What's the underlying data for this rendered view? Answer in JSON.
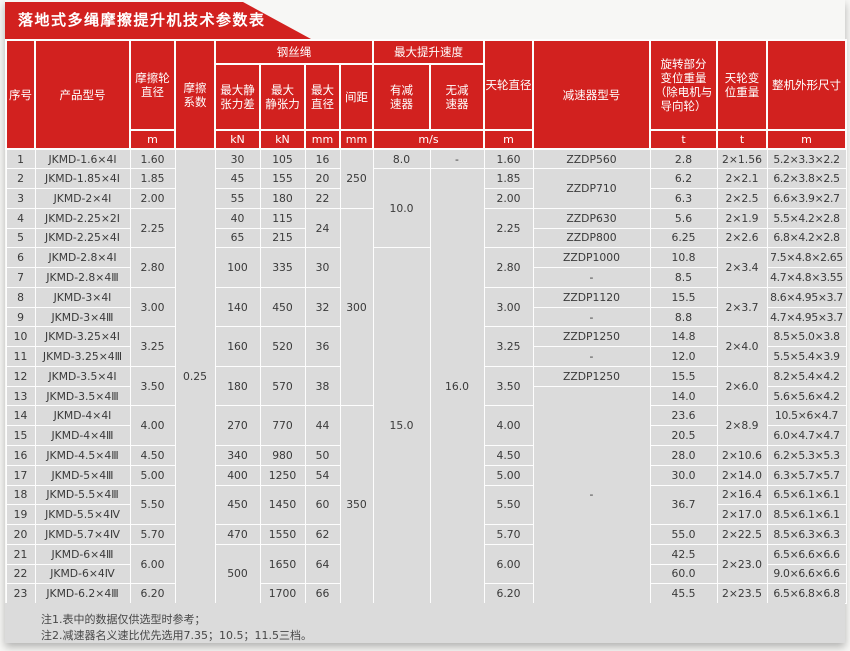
{
  "title": "落地式多绳摩擦提升机技术参数表",
  "colors": {
    "accent_red": "#d2211f",
    "row_bg": "#dbdbdb",
    "grid_line": "#fdfdfd",
    "text": "#3a3a3a"
  },
  "header": {
    "seq": "序号",
    "model": "产品型号",
    "wheel_d": "摩擦轮\n直径",
    "fric": "摩擦\n系数",
    "rope_group": "钢丝绳",
    "tension_diff": "最大静\n张力差",
    "tension_max": "最大\n静张力",
    "rope_dmax": "最大\n直径",
    "spacing": "间距",
    "speed_group": "最大提升速度",
    "speed_red": "有减\n速器",
    "speed_nored": "无减\n速器",
    "sheave_d": "天轮直径",
    "reducer": "减速器型号",
    "rotating_wt": "旋转部分\n变位重量\n（除电机与\n导向轮）",
    "sheave_wt": "天轮变\n位重量",
    "dims": "整机外形尺寸",
    "units": {
      "wheel_d": "m",
      "tension_diff": "kN",
      "tension_max": "kN",
      "rope_dmax": "mm",
      "spacing": "mm",
      "speed": "m/s",
      "sheave_d": "m",
      "rotating_wt": "t",
      "sheave_wt": "t",
      "dims": "m"
    }
  },
  "rows": [
    [
      "1",
      "JKMD-1.6×4Ⅰ",
      "1.60",
      {
        "v": "0.25",
        "rs": 23
      },
      "30",
      "105",
      "16",
      {
        "v": "250",
        "rs": 3
      },
      "8.0",
      "-",
      "1.60",
      "ZZDP560",
      "2.8",
      "2×1.56",
      "5.2×3.3×2.2"
    ],
    [
      "2",
      "JKMD-1.85×4Ⅰ",
      "1.85",
      "45",
      "155",
      "20",
      {
        "v": "10.0",
        "rs": 4
      },
      {
        "v": "16.0",
        "rs": 22
      },
      "1.85",
      {
        "v": "ZZDP710",
        "rs": 2
      },
      "6.2",
      "2×2.1",
      "6.2×3.8×2.5"
    ],
    [
      "3",
      "JKMD-2×4Ⅰ",
      "2.00",
      "55",
      "180",
      "22",
      "2.00",
      "6.3",
      "2×2.5",
      "6.6×3.9×2.7"
    ],
    [
      "4",
      "JKMD-2.25×2Ⅰ",
      {
        "v": "2.25",
        "rs": 2
      },
      "40",
      "115",
      {
        "v": "24",
        "rs": 2
      },
      {
        "v": "300",
        "rs": 10
      },
      {
        "v": "2.25",
        "rs": 2
      },
      "ZZDP630",
      "5.6",
      "2×1.9",
      "5.5×4.2×2.8"
    ],
    [
      "5",
      "JKMD-2.25×4Ⅰ",
      "65",
      "215",
      "ZZDP800",
      "6.25",
      "2×2.6",
      "6.8×4.2×2.8"
    ],
    [
      "6",
      "JKMD-2.8×4Ⅰ",
      {
        "v": "2.80",
        "rs": 2
      },
      {
        "v": "100",
        "rs": 2
      },
      {
        "v": "335",
        "rs": 2
      },
      {
        "v": "30",
        "rs": 2
      },
      {
        "v": "15.0",
        "rs": 18
      },
      {
        "v": "2.80",
        "rs": 2
      },
      "ZZDP1000",
      "10.8",
      {
        "v": "2×3.4",
        "rs": 2
      },
      "7.5×4.8×2.65"
    ],
    [
      "7",
      "JKMD-2.8×4Ⅲ",
      "-",
      "8.5",
      "4.7×4.8×3.55"
    ],
    [
      "8",
      "JKMD-3×4Ⅰ",
      {
        "v": "3.00",
        "rs": 2
      },
      {
        "v": "140",
        "rs": 2
      },
      {
        "v": "450",
        "rs": 2
      },
      {
        "v": "32",
        "rs": 2
      },
      {
        "v": "3.00",
        "rs": 2
      },
      "ZZDP1120",
      "15.5",
      {
        "v": "2×3.7",
        "rs": 2
      },
      "8.6×4.95×3.7"
    ],
    [
      "9",
      "JKMD-3×4Ⅲ",
      "-",
      "8.8",
      "4.7×4.95×3.7"
    ],
    [
      "10",
      "JKMD-3.25×4Ⅰ",
      {
        "v": "3.25",
        "rs": 2
      },
      {
        "v": "160",
        "rs": 2
      },
      {
        "v": "520",
        "rs": 2
      },
      {
        "v": "36",
        "rs": 2
      },
      {
        "v": "3.25",
        "rs": 2
      },
      "ZZDP1250",
      "14.8",
      {
        "v": "2×4.0",
        "rs": 2
      },
      "8.5×5.0×3.8"
    ],
    [
      "11",
      "JKMD-3.25×4Ⅲ",
      "-",
      "12.0",
      "5.5×5.4×3.9"
    ],
    [
      "12",
      "JKMD-3.5×4Ⅰ",
      {
        "v": "3.50",
        "rs": 2
      },
      {
        "v": "180",
        "rs": 2
      },
      {
        "v": "570",
        "rs": 2
      },
      {
        "v": "38",
        "rs": 2
      },
      {
        "v": "3.50",
        "rs": 2
      },
      "ZZDP1250",
      "15.5",
      {
        "v": "2×6.0",
        "rs": 2
      },
      "8.2×5.4×4.2"
    ],
    [
      "13",
      "JKMD-3.5×4Ⅲ",
      {
        "v": "-",
        "rs": 11
      },
      "14.0",
      "5.6×5.6×4.2"
    ],
    [
      "14",
      "JKMD-4×4Ⅰ",
      {
        "v": "4.00",
        "rs": 2
      },
      {
        "v": "270",
        "rs": 2
      },
      {
        "v": "770",
        "rs": 2
      },
      {
        "v": "44",
        "rs": 2
      },
      {
        "v": "350",
        "rs": 10
      },
      {
        "v": "4.00",
        "rs": 2
      },
      "23.6",
      {
        "v": "2×8.9",
        "rs": 2
      },
      "10.5×6×4.7"
    ],
    [
      "15",
      "JKMD-4×4Ⅲ",
      "20.5",
      "6.0×4.7×4.7"
    ],
    [
      "16",
      "JKMD-4.5×4Ⅲ",
      "4.50",
      "340",
      "980",
      "50",
      "4.50",
      "28.0",
      "2×10.6",
      "6.2×5.3×5.3"
    ],
    [
      "17",
      "JKMD-5×4Ⅲ",
      "5.00",
      "400",
      "1250",
      "54",
      "5.00",
      "30.0",
      "2×14.0",
      "6.3×5.7×5.7"
    ],
    [
      "18",
      "JKMD-5.5×4Ⅲ",
      {
        "v": "5.50",
        "rs": 2
      },
      {
        "v": "450",
        "rs": 2
      },
      {
        "v": "1450",
        "rs": 2
      },
      {
        "v": "60",
        "rs": 2
      },
      {
        "v": "5.50",
        "rs": 2
      },
      {
        "v": "36.7",
        "rs": 2
      },
      "2×16.4",
      "6.5×6.1×6.1"
    ],
    [
      "19",
      "JKMD-5.5×4Ⅳ",
      "2×17.0",
      "8.5×6.1×6.1"
    ],
    [
      "20",
      "JKMD-5.7×4Ⅳ",
      "5.70",
      "470",
      "1550",
      "62",
      "5.70",
      "55.0",
      "2×22.5",
      "8.5×6.3×6.3"
    ],
    [
      "21",
      "JKMD-6×4Ⅲ",
      {
        "v": "6.00",
        "rs": 2
      },
      {
        "v": "500",
        "rs": 3
      },
      {
        "v": "1650",
        "rs": 2
      },
      {
        "v": "64",
        "rs": 2
      },
      {
        "v": "6.00",
        "rs": 2
      },
      "42.5",
      {
        "v": "2×23.0",
        "rs": 2
      },
      "6.5×6.6×6.6"
    ],
    [
      "22",
      "JKMD-6×4Ⅳ",
      "60.0",
      "9.0×6.6×6.6"
    ],
    [
      "23",
      "JKMD-6.2×4Ⅲ",
      "6.20",
      "1700",
      "66",
      "6.20",
      "45.5",
      "2×23.5",
      "6.5×6.8×6.8"
    ]
  ],
  "notes": [
    "注1.表中的数据仅供选型时参考；",
    "注2.减速器名义速比优先选用7.35；10.5；11.5三档。"
  ]
}
